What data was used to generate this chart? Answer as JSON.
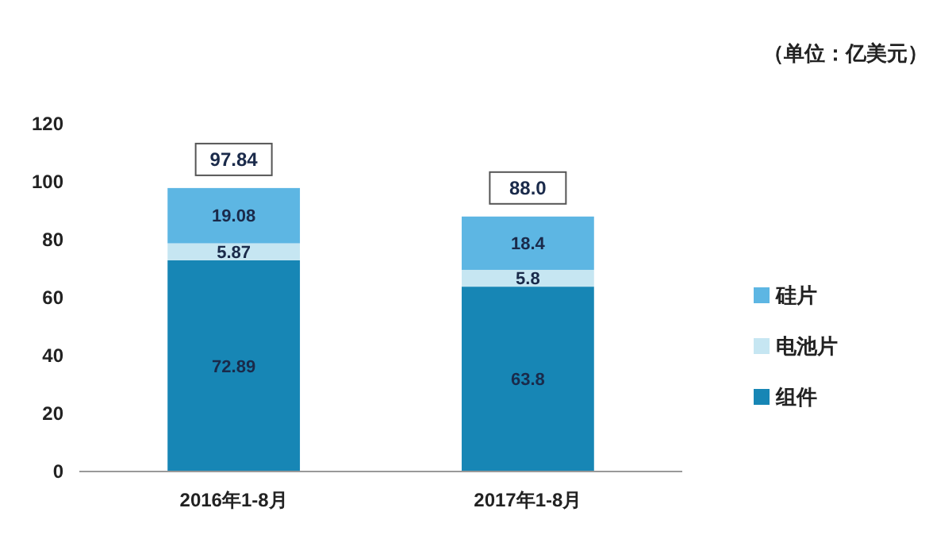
{
  "chart_data": {
    "type": "bar",
    "stacked": true,
    "categories": [
      "2016年1-8月",
      "2017年1-8月"
    ],
    "series": [
      {
        "name": "组件",
        "color": "#1786b5",
        "values": [
          72.89,
          63.8
        ]
      },
      {
        "name": "电池片",
        "color": "#c6e6f2",
        "values": [
          5.87,
          5.8
        ]
      },
      {
        "name": "硅片",
        "color": "#5db6e3",
        "values": [
          19.08,
          18.4
        ]
      }
    ],
    "ylim": [
      0,
      120
    ],
    "yticks": [
      0,
      20,
      40,
      60,
      80,
      100,
      120
    ],
    "grid": false,
    "legend": "right",
    "data_labels": true,
    "totals": [
      "97.84",
      "88.0"
    ],
    "annotations": [
      "（单位：亿美元）"
    ]
  }
}
